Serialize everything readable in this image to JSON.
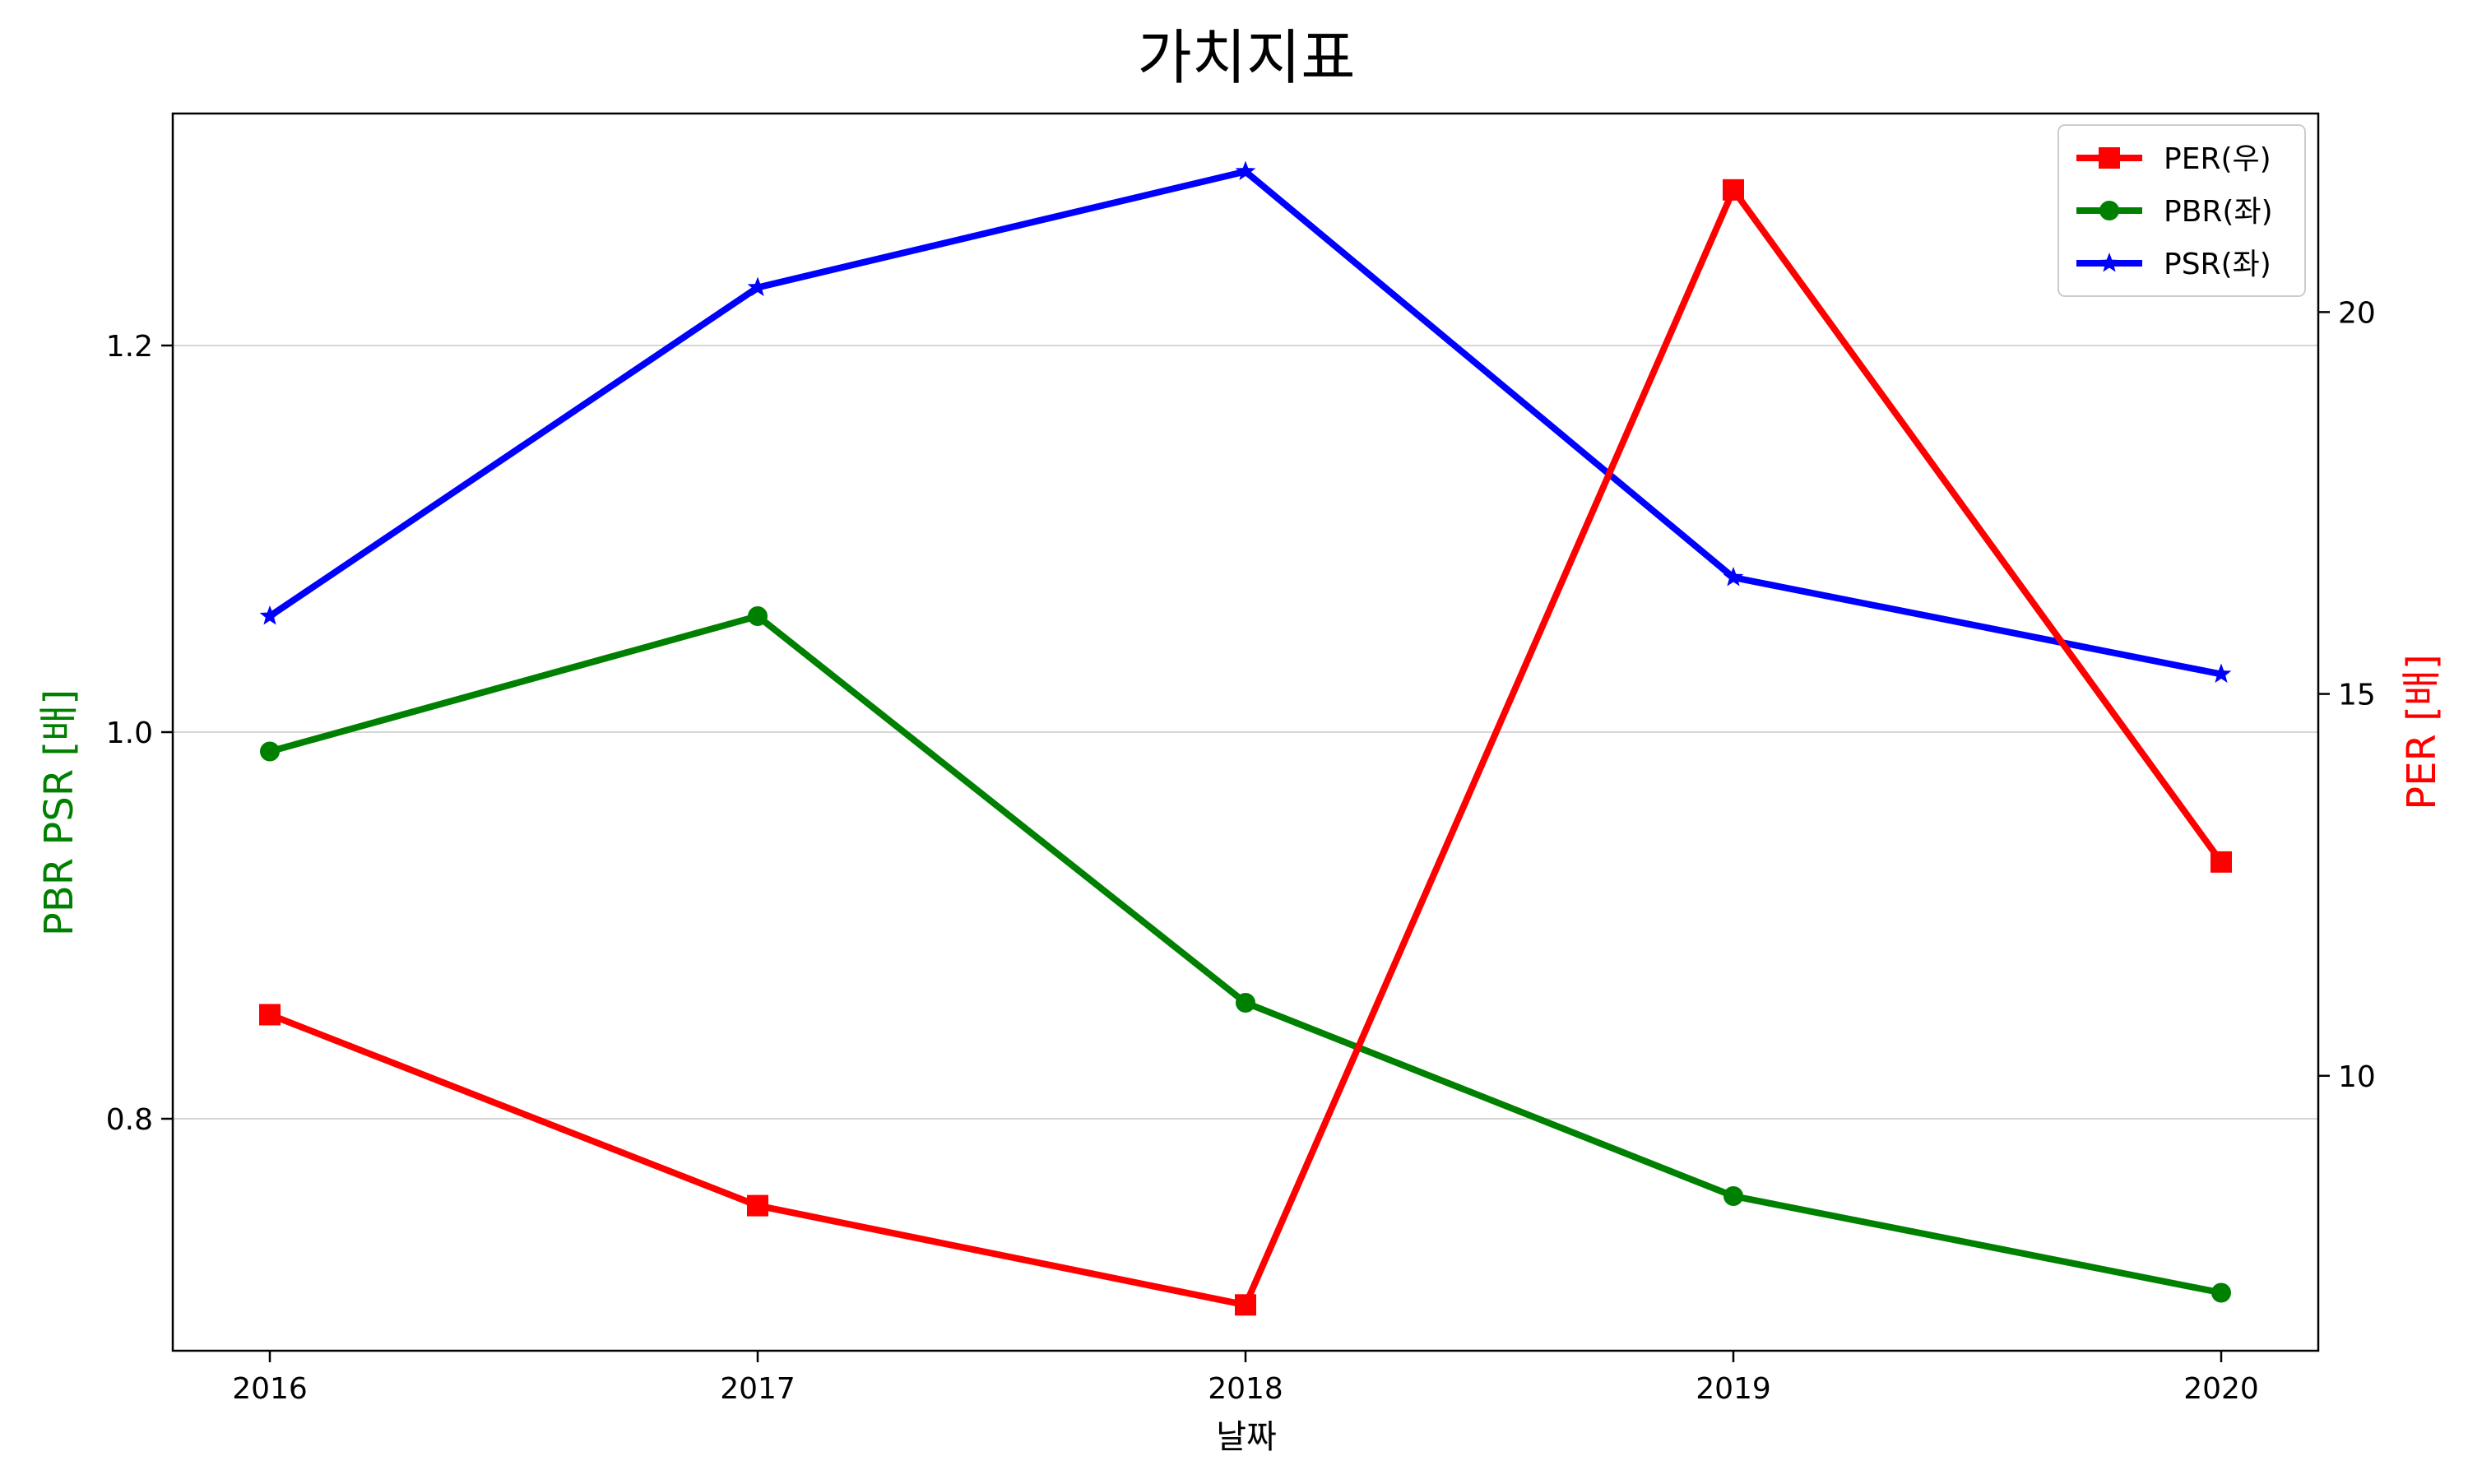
{
  "chart_data": {
    "type": "line",
    "title": "가치지표",
    "xlabel": "날짜",
    "ylabel_left": "PBR PSR [배]",
    "ylabel_right": "PER [배]",
    "categories": [
      "2016",
      "2017",
      "2018",
      "2019",
      "2020"
    ],
    "y_left": {
      "lim": [
        0.68,
        1.32
      ],
      "ticks": [
        0.8,
        1.0,
        1.2
      ],
      "tick_labels": [
        "0.8",
        "1.0",
        "1.2"
      ]
    },
    "y_right": {
      "lim": [
        6.4,
        22.6
      ],
      "ticks": [
        10,
        15,
        20
      ],
      "tick_labels": [
        "10",
        "15",
        "20"
      ]
    },
    "grid": "horizontal (left axis)",
    "legend_position": "upper-right",
    "series": [
      {
        "name": "PER(우)",
        "axis": "right",
        "color": "#ff0000",
        "marker": "square",
        "values": [
          10.8,
          8.3,
          7.0,
          21.6,
          12.8
        ]
      },
      {
        "name": "PBR(좌)",
        "axis": "left",
        "color": "#008000",
        "marker": "circle",
        "values": [
          0.99,
          1.06,
          0.86,
          0.76,
          0.71
        ]
      },
      {
        "name": "PSR(좌)",
        "axis": "left",
        "color": "#0000ff",
        "marker": "star",
        "values": [
          1.06,
          1.23,
          1.29,
          1.08,
          1.03
        ]
      }
    ]
  }
}
